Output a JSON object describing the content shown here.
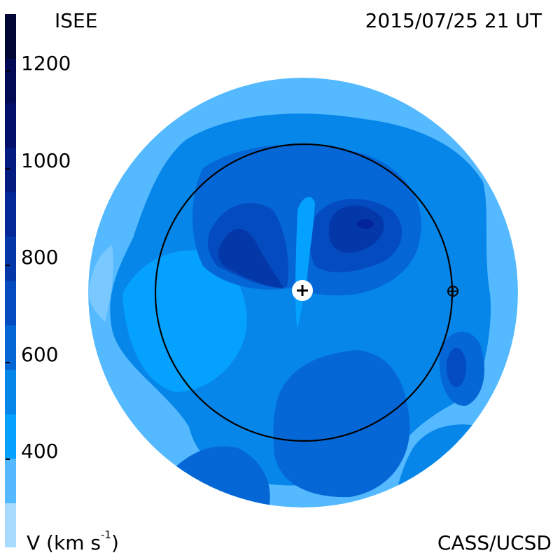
{
  "header": {
    "observatory": "ISEE",
    "datetime": "2015/07/25 21 UT"
  },
  "footer": {
    "quantity_label": "V (km s",
    "quantity_exponent": "-1",
    "quantity_close": ")",
    "credit": "CASS/UCSD"
  },
  "colors": {
    "levels": [
      "#a7dcff",
      "#54b9ff",
      "#05a1ff",
      "#0686e8",
      "#0566d6",
      "#044bbf",
      "#0438a8",
      "#042896",
      "#041b80",
      "#03106b",
      "#020a55",
      "#000533"
    ]
  },
  "chart_data": {
    "type": "heatmap",
    "title": "2015/07/25 21 UT",
    "variable": "V (km s^-1)",
    "colorbar": {
      "tick_labels": [
        "400",
        "600",
        "800",
        "1000",
        "1200"
      ],
      "tick_values": [
        400,
        600,
        800,
        1000,
        1200
      ]
    },
    "center_marker": "sun-plus",
    "earth_marker": "earth-crosshair"
  }
}
